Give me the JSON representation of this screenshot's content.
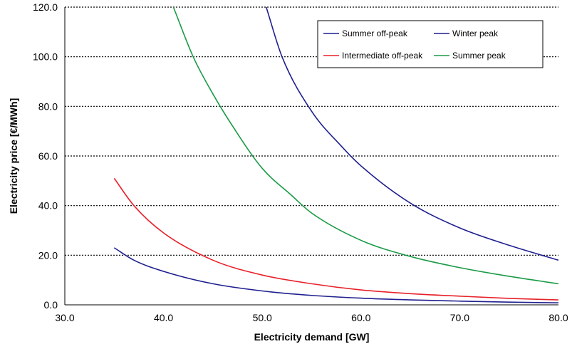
{
  "chart_data": {
    "type": "line",
    "title": "",
    "xlabel": "Electricity demand [GW]",
    "ylabel": "Electricity price [€/MWh]",
    "xlim": [
      30,
      80
    ],
    "ylim": [
      0,
      120
    ],
    "xticks": [
      "30.0",
      "40.0",
      "50.0",
      "60.0",
      "70.0",
      "80.0"
    ],
    "yticks": [
      "0.0",
      "20.0",
      "40.0",
      "60.0",
      "80.0",
      "100.0",
      "120.0"
    ],
    "grid": "horizontal-dotted",
    "legend_position": "top-right",
    "series": [
      {
        "name": "Summer off-peak",
        "color": "#1f1f8f",
        "x": [
          35,
          37,
          40,
          45,
          50,
          55,
          60,
          65,
          70,
          75,
          80
        ],
        "y": [
          23.0,
          18.0,
          13.5,
          8.5,
          5.6,
          3.8,
          2.7,
          2.0,
          1.5,
          1.1,
          0.8
        ]
      },
      {
        "name": "Winter peak",
        "color": "#1f1f8f",
        "x": [
          50.4,
          52,
          55,
          58,
          60,
          65,
          70,
          75,
          80
        ],
        "y": [
          120.0,
          100.0,
          78.0,
          64.0,
          56.0,
          41.0,
          31.0,
          24.0,
          18.0
        ]
      },
      {
        "name": "Intermediate off-peak",
        "color": "#e8202a",
        "x": [
          35,
          37,
          40,
          45,
          50,
          55,
          60,
          65,
          70,
          75,
          80
        ],
        "y": [
          51.0,
          40.0,
          29.0,
          18.0,
          12.0,
          8.5,
          6.0,
          4.5,
          3.5,
          2.6,
          2.0
        ]
      },
      {
        "name": "Summer peak",
        "color": "#1a9a46",
        "x": [
          41,
          43,
          45,
          47,
          50,
          53,
          55,
          60,
          65,
          70,
          75,
          80
        ],
        "y": [
          120.0,
          100.0,
          85.0,
          72.0,
          55.0,
          44.0,
          37.0,
          26.0,
          19.5,
          15.0,
          11.5,
          8.5
        ]
      }
    ]
  }
}
